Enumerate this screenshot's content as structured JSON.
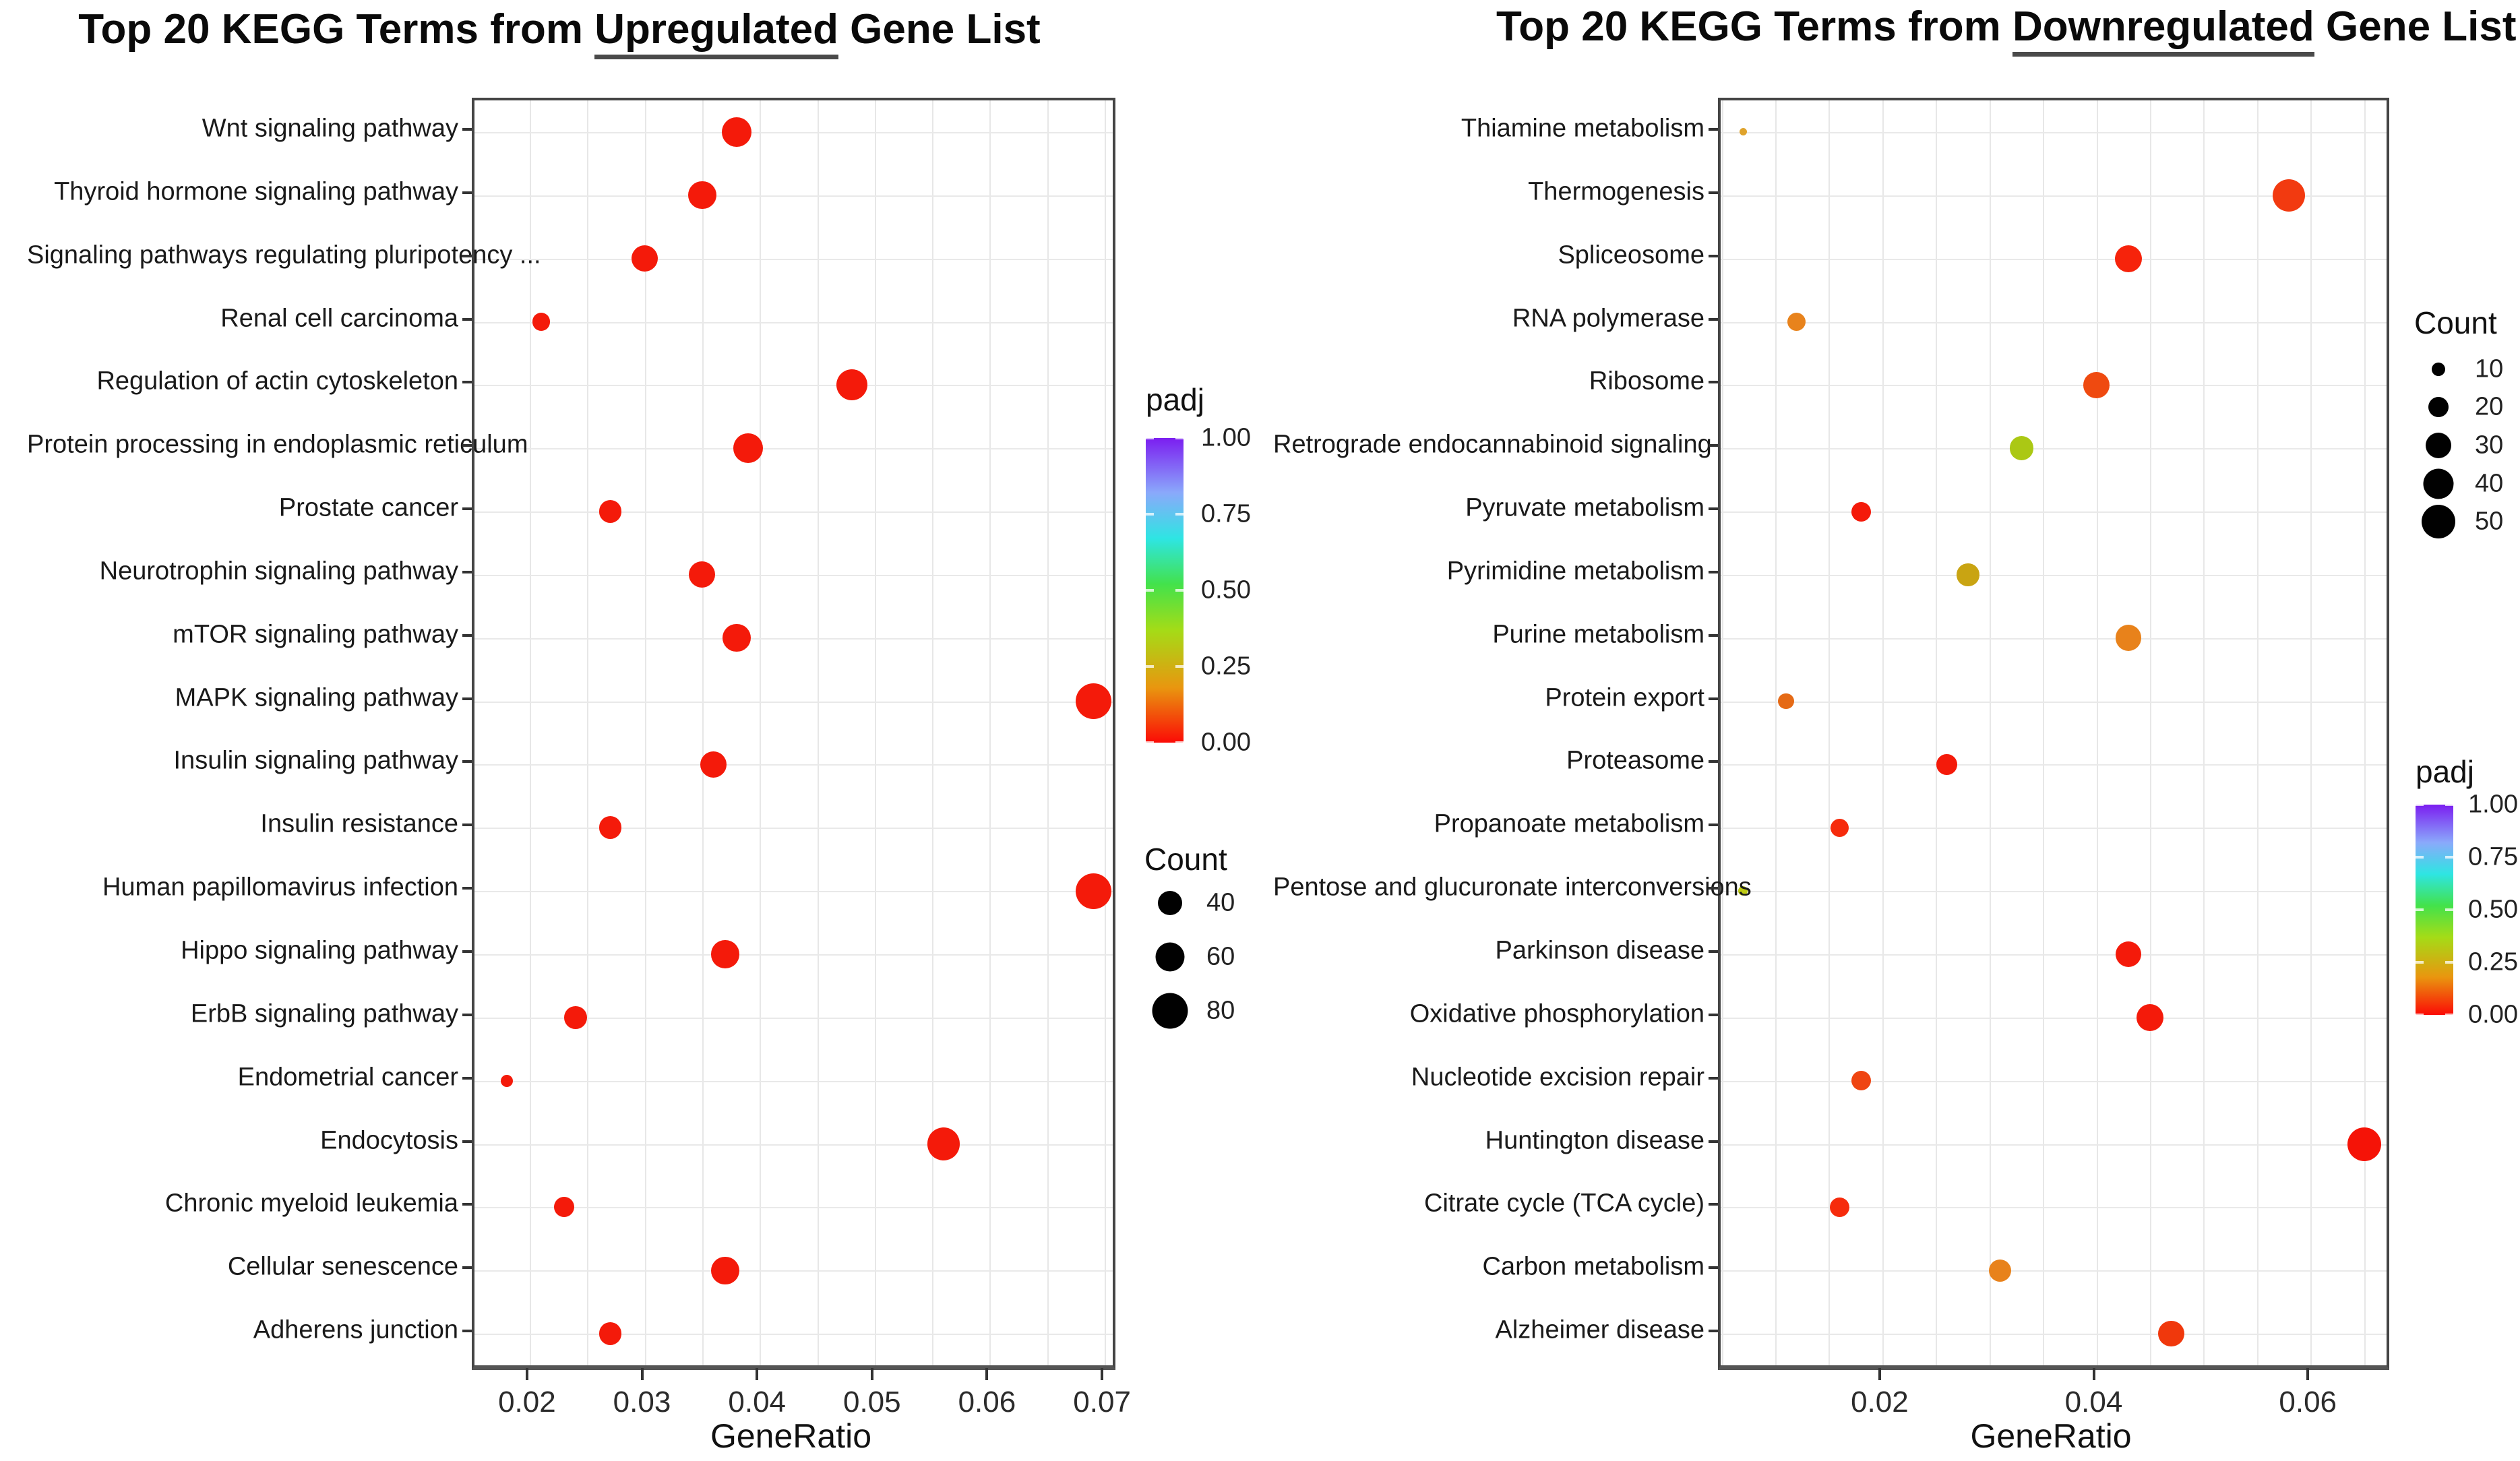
{
  "page": {
    "background": "#ffffff",
    "accent_red": "#f41a0a"
  },
  "chart_data": [
    {
      "type": "scatter",
      "title": {
        "prefix": "Top 20 KEGG Terms from ",
        "underlined": "Upregulated",
        "suffix": " Gene List"
      },
      "xlabel": "GeneRatio",
      "x_domain": [
        0.0152,
        0.0707
      ],
      "grid_step": 0.005,
      "x_ticks": [
        {
          "value": 0.02,
          "label": "0.02"
        },
        {
          "value": 0.03,
          "label": "0.03"
        },
        {
          "value": 0.04,
          "label": "0.04"
        },
        {
          "value": 0.05,
          "label": "0.05"
        },
        {
          "value": 0.06,
          "label": "0.06"
        },
        {
          "value": 0.07,
          "label": "0.07"
        }
      ],
      "categories": [
        "Wnt signaling pathway",
        "Thyroid hormone signaling pathway",
        "Signaling pathways regulating pluripotency ...",
        "Renal cell carcinoma",
        "Regulation of actin cytoskeleton",
        "Protein processing in endoplasmic reticulum",
        "Prostate cancer",
        "Neurotrophin signaling pathway",
        "mTOR signaling pathway",
        "MAPK signaling pathway",
        "Insulin signaling pathway",
        "Insulin resistance",
        "Human papillomavirus infection",
        "Hippo signaling pathway",
        "ErbB signaling pathway",
        "Endometrial cancer",
        "Endocytosis",
        "Chronic myeloid leukemia",
        "Cellular senescence",
        "Adherens junction"
      ],
      "points": [
        {
          "gene_ratio": 0.038,
          "count": 62,
          "padj_color": "#f41a0a"
        },
        {
          "gene_ratio": 0.035,
          "count": 55,
          "padj_color": "#f41a0a"
        },
        {
          "gene_ratio": 0.03,
          "count": 48,
          "padj_color": "#f41a0a"
        },
        {
          "gene_ratio": 0.021,
          "count": 22,
          "padj_color": "#f41a0a"
        },
        {
          "gene_ratio": 0.048,
          "count": 66,
          "padj_color": "#f41a0a"
        },
        {
          "gene_ratio": 0.039,
          "count": 62,
          "padj_color": "#f41a0a"
        },
        {
          "gene_ratio": 0.027,
          "count": 35,
          "padj_color": "#f41a0a"
        },
        {
          "gene_ratio": 0.035,
          "count": 48,
          "padj_color": "#f41a0a"
        },
        {
          "gene_ratio": 0.038,
          "count": 55,
          "padj_color": "#f41a0a"
        },
        {
          "gene_ratio": 0.069,
          "count": 80,
          "padj_color": "#f41a0a"
        },
        {
          "gene_ratio": 0.036,
          "count": 48,
          "padj_color": "#f41a0a"
        },
        {
          "gene_ratio": 0.027,
          "count": 35,
          "padj_color": "#f41a0a"
        },
        {
          "gene_ratio": 0.069,
          "count": 80,
          "padj_color": "#f41a0a"
        },
        {
          "gene_ratio": 0.037,
          "count": 55,
          "padj_color": "#f41a0a"
        },
        {
          "gene_ratio": 0.024,
          "count": 35,
          "padj_color": "#f41a0a"
        },
        {
          "gene_ratio": 0.018,
          "count": 10,
          "padj_color": "#f41a0a"
        },
        {
          "gene_ratio": 0.056,
          "count": 70,
          "padj_color": "#f41a0a"
        },
        {
          "gene_ratio": 0.023,
          "count": 28,
          "padj_color": "#f41a0a"
        },
        {
          "gene_ratio": 0.037,
          "count": 55,
          "padj_color": "#f41a0a"
        },
        {
          "gene_ratio": 0.027,
          "count": 35,
          "padj_color": "#f41a0a"
        }
      ],
      "legend_count": {
        "title": "Count",
        "entries": [
          {
            "label": "40"
          },
          {
            "label": "60"
          },
          {
            "label": "80"
          }
        ]
      },
      "legend_padj": {
        "title": "padj",
        "ticks": [
          "1.00",
          "0.75",
          "0.50",
          "0.25",
          "0.00"
        ]
      }
    },
    {
      "type": "scatter",
      "title": {
        "prefix": "Top 20 KEGG Terms from ",
        "underlined": "Downregulated",
        "suffix": " Gene List"
      },
      "xlabel": "GeneRatio",
      "x_domain": [
        0.0049,
        0.0671
      ],
      "grid_step": 0.005,
      "x_ticks": [
        {
          "value": 0.02,
          "label": "0.02"
        },
        {
          "value": 0.04,
          "label": "0.04"
        },
        {
          "value": 0.06,
          "label": "0.06"
        }
      ],
      "categories": [
        "Thiamine metabolism",
        "Thermogenesis",
        "Spliceosome",
        "RNA polymerase",
        "Ribosome",
        "Retrograde endocannabinoid signaling",
        "Pyruvate metabolism",
        "Pyrimidine metabolism",
        "Purine metabolism",
        "Protein export",
        "Proteasome",
        "Propanoate metabolism",
        "Pentose and glucuronate interconversions",
        "Parkinson disease",
        "Oxidative phosphorylation",
        "Nucleotide excision repair",
        "Huntington disease",
        "Citrate cycle (TCA cycle)",
        "Carbon metabolism",
        "Alzheimer disease"
      ],
      "points": [
        {
          "gene_ratio": 0.007,
          "count": 3,
          "padj_color": "#dfa32c"
        },
        {
          "gene_ratio": 0.058,
          "count": 46,
          "padj_color": "#f23a10"
        },
        {
          "gene_ratio": 0.043,
          "count": 33,
          "padj_color": "#f6230b"
        },
        {
          "gene_ratio": 0.012,
          "count": 17,
          "padj_color": "#e8831c"
        },
        {
          "gene_ratio": 0.04,
          "count": 31,
          "padj_color": "#ef4a10"
        },
        {
          "gene_ratio": 0.033,
          "count": 27,
          "padj_color": "#abc814"
        },
        {
          "gene_ratio": 0.018,
          "count": 19,
          "padj_color": "#f41a0a"
        },
        {
          "gene_ratio": 0.028,
          "count": 24,
          "padj_color": "#c9a412"
        },
        {
          "gene_ratio": 0.043,
          "count": 31,
          "padj_color": "#e8821b"
        },
        {
          "gene_ratio": 0.011,
          "count": 13,
          "padj_color": "#e56a16"
        },
        {
          "gene_ratio": 0.026,
          "count": 21,
          "padj_color": "#f41a0a"
        },
        {
          "gene_ratio": 0.016,
          "count": 17,
          "padj_color": "#f62b0c"
        },
        {
          "gene_ratio": 0.007,
          "count": 5,
          "padj_color": "#bfcc13"
        },
        {
          "gene_ratio": 0.043,
          "count": 31,
          "padj_color": "#f41a0a"
        },
        {
          "gene_ratio": 0.045,
          "count": 33,
          "padj_color": "#f41a0a"
        },
        {
          "gene_ratio": 0.018,
          "count": 19,
          "padj_color": "#ef4512"
        },
        {
          "gene_ratio": 0.065,
          "count": 50,
          "padj_color": "#f51307"
        },
        {
          "gene_ratio": 0.016,
          "count": 19,
          "padj_color": "#f62b0c"
        },
        {
          "gene_ratio": 0.031,
          "count": 24,
          "padj_color": "#e8821b"
        },
        {
          "gene_ratio": 0.047,
          "count": 31,
          "padj_color": "#f0380c"
        }
      ],
      "legend_count": {
        "title": "Count",
        "entries": [
          {
            "label": "10"
          },
          {
            "label": "20"
          },
          {
            "label": "30"
          },
          {
            "label": "40"
          },
          {
            "label": "50"
          }
        ]
      },
      "legend_padj": {
        "title": "padj",
        "ticks": [
          "1.00",
          "0.75",
          "0.50",
          "0.25",
          "0.00"
        ]
      }
    }
  ]
}
